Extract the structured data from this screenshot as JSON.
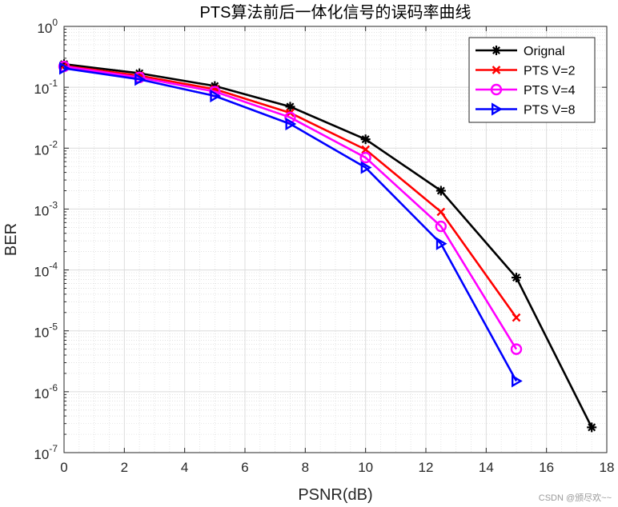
{
  "chart_data": {
    "type": "line",
    "title": "PTS算法前后一体化信号的误码率曲线",
    "xlabel": "PSNR(dB)",
    "ylabel": "BER",
    "xlim": [
      0,
      18
    ],
    "ylim": [
      1e-07,
      1
    ],
    "yscale": "log",
    "grid": true,
    "minor_grid": true,
    "legend_position": "top-right",
    "x_ticks": [
      "0",
      "2",
      "4",
      "6",
      "8",
      "10",
      "12",
      "14",
      "16",
      "18"
    ],
    "y_ticks": [
      {
        "base": "10",
        "exp": "0"
      },
      {
        "base": "10",
        "exp": "-1"
      },
      {
        "base": "10",
        "exp": "-2"
      },
      {
        "base": "10",
        "exp": "-3"
      },
      {
        "base": "10",
        "exp": "-4"
      },
      {
        "base": "10",
        "exp": "-5"
      },
      {
        "base": "10",
        "exp": "-6"
      },
      {
        "base": "10",
        "exp": "-7"
      }
    ],
    "series": [
      {
        "name": "Orignal",
        "color": "#000000",
        "marker": "asterisk",
        "x": [
          0,
          2.5,
          5,
          7.5,
          10,
          12.5,
          15,
          17.5
        ],
        "y": [
          0.24,
          0.17,
          0.105,
          0.048,
          0.014,
          0.002,
          7.5e-05,
          2.6e-07
        ]
      },
      {
        "name": "PTS V=2",
        "color": "#ff0000",
        "marker": "x",
        "x": [
          0,
          2.5,
          5,
          7.5,
          10,
          12.5,
          15
        ],
        "y": [
          0.225,
          0.155,
          0.093,
          0.038,
          0.0095,
          0.0009,
          1.65e-05
        ]
      },
      {
        "name": "PTS V=4",
        "color": "#ff00ff",
        "marker": "circle",
        "x": [
          0,
          2.5,
          5,
          7.5,
          10,
          12.5,
          15
        ],
        "y": [
          0.22,
          0.145,
          0.085,
          0.032,
          0.007,
          0.00052,
          5e-06
        ]
      },
      {
        "name": "PTS V=8",
        "color": "#0000ff",
        "marker": "triangle-right",
        "x": [
          0,
          2.5,
          5,
          7.5,
          10,
          12.5,
          15
        ],
        "y": [
          0.205,
          0.135,
          0.072,
          0.025,
          0.0048,
          0.00027,
          1.5e-06
        ]
      }
    ]
  },
  "watermark": "CSDN @颁尽欢~~"
}
